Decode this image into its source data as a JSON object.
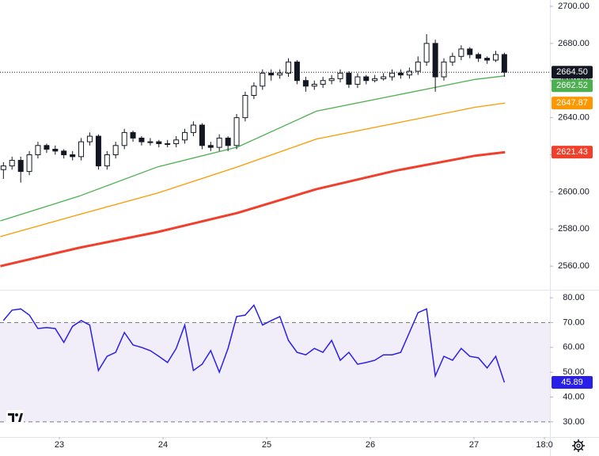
{
  "chart_data": [
    {
      "type": "candlestick",
      "x": [
        22.46,
        22.543,
        22.627,
        22.71,
        22.793,
        22.877,
        22.96,
        23.043,
        23.127,
        23.21,
        23.293,
        23.377,
        23.46,
        23.543,
        23.627,
        23.71,
        23.793,
        23.877,
        23.96,
        24.043,
        24.127,
        24.21,
        24.293,
        24.377,
        24.46,
        24.543,
        24.627,
        24.71,
        24.793,
        24.877,
        24.96,
        25.043,
        25.127,
        25.21,
        25.293,
        25.377,
        25.46,
        25.543,
        25.627,
        25.71,
        25.793,
        25.877,
        25.96,
        26.043,
        26.127,
        26.21,
        26.293,
        26.377,
        26.46,
        26.543,
        26.627,
        26.71,
        26.793,
        26.877,
        26.96,
        27.043,
        27.127,
        27.21,
        27.293
      ],
      "open": [
        2612,
        2614,
        2617,
        2611,
        2620,
        2625,
        2623,
        2622,
        2620,
        2619,
        2627,
        2630,
        2614,
        2620,
        2625,
        2632,
        2629,
        2627,
        2627,
        2626,
        2626,
        2628,
        2632,
        2636,
        2625,
        2624,
        2629,
        2625,
        2640,
        2652,
        2657,
        2664,
        2663,
        2664,
        2670,
        2660,
        2657,
        2658,
        2660,
        2661,
        2664,
        2658,
        2662,
        2660,
        2661,
        2662,
        2664,
        2663,
        2665,
        2670,
        2680,
        2662,
        2670,
        2673,
        2677,
        2674,
        2672,
        2671,
        2674
      ],
      "high": [
        2616,
        2619,
        2619,
        2622,
        2627,
        2626,
        2625,
        2623,
        2622,
        2629,
        2632,
        2631,
        2622,
        2627,
        2634,
        2633,
        2630,
        2629,
        2628,
        2628,
        2630,
        2634,
        2638,
        2637,
        2627,
        2631,
        2630,
        2642,
        2654,
        2659,
        2666,
        2666,
        2666,
        2672,
        2671,
        2662,
        2660,
        2662,
        2663,
        2666,
        2665,
        2664,
        2663,
        2663,
        2664,
        2666,
        2666,
        2667,
        2673,
        2685,
        2682,
        2672,
        2675,
        2679,
        2678,
        2675,
        2673,
        2676,
        2675
      ],
      "low": [
        2607,
        2612,
        2605,
        2609,
        2618,
        2621,
        2620,
        2618,
        2617,
        2617,
        2625,
        2612,
        2612,
        2618,
        2623,
        2627,
        2625,
        2625,
        2624,
        2624,
        2624,
        2626,
        2630,
        2623,
        2622,
        2622,
        2622,
        2623,
        2638,
        2650,
        2655,
        2660,
        2661,
        2662,
        2658,
        2654,
        2655,
        2656,
        2658,
        2659,
        2656,
        2656,
        2658,
        2659,
        2660,
        2660,
        2661,
        2661,
        2663,
        2668,
        2654,
        2660,
        2668,
        2671,
        2672,
        2670,
        2669,
        2670,
        2662
      ],
      "close": [
        2614,
        2617,
        2611,
        2620,
        2625,
        2623,
        2622,
        2620,
        2619,
        2627,
        2630,
        2614,
        2620,
        2625,
        2632,
        2629,
        2627,
        2627,
        2626,
        2626,
        2628,
        2632,
        2636,
        2625,
        2624,
        2629,
        2625,
        2640,
        2652,
        2657,
        2664,
        2663,
        2664,
        2670,
        2660,
        2657,
        2658,
        2660,
        2661,
        2664,
        2658,
        2662,
        2660,
        2661,
        2662,
        2664,
        2663,
        2665,
        2670,
        2680,
        2662,
        2670,
        2673,
        2677,
        2674,
        2672,
        2671,
        2674,
        2664.5
      ],
      "last_price": {
        "value": 2664.5,
        "label": "2664.50"
      },
      "up_color": "#ffffff",
      "down_color": "#131722",
      "series": [
        {
          "x": [
            22.43,
            23.19,
            23.95,
            24.72,
            25.48,
            26.24,
            27.01,
            27.3
          ],
          "values": [
            2584.4,
            2597.7,
            2613.5,
            2624.2,
            2643.5,
            2652,
            2660.6,
            2662.52
          ],
          "last_label": "2662.52",
          "color": "#4caf50"
        },
        {
          "x": [
            22.43,
            23.19,
            23.95,
            24.72,
            25.48,
            26.24,
            27.01,
            27.3
          ],
          "values": [
            2575.9,
            2587.8,
            2599.4,
            2613.5,
            2628.5,
            2637,
            2645.6,
            2647.87
          ],
          "last_label": "2647.87",
          "color": "#ff9800"
        },
        {
          "x": [
            22.43,
            23.19,
            23.95,
            24.72,
            25.48,
            26.24,
            27.01,
            27.3
          ],
          "values": [
            2560,
            2569.9,
            2578.4,
            2588.7,
            2601.5,
            2611.4,
            2619.5,
            2621.43
          ],
          "last_label": "2621.43",
          "color": "#f0402c"
        }
      ],
      "xlim": [
        22.427,
        27.733
      ],
      "xticks": [
        23,
        24,
        25,
        26,
        27,
        {
          "value": 27.68,
          "label": "18:0"
        }
      ],
      "ylim": [
        2547.7,
        2703.4
      ],
      "yticks": [
        {
          "value": 2560,
          "label": "2560.00"
        },
        {
          "value": 2580,
          "label": "2580.00"
        },
        {
          "value": 2600,
          "label": "2600.00"
        },
        {
          "value": 2620,
          "label": "2620.00"
        },
        {
          "value": 2640,
          "label": "2640.00"
        },
        {
          "value": 2660,
          "label": "2660.00"
        },
        {
          "value": 2680,
          "label": "2680.00"
        },
        {
          "value": 2700,
          "label": "2700.00"
        }
      ]
    },
    {
      "type": "line",
      "x": [
        22.46,
        22.543,
        22.627,
        22.71,
        22.793,
        22.877,
        22.96,
        23.043,
        23.127,
        23.21,
        23.293,
        23.377,
        23.46,
        23.543,
        23.627,
        23.71,
        23.793,
        23.877,
        23.96,
        24.043,
        24.127,
        24.21,
        24.293,
        24.377,
        24.46,
        24.543,
        24.627,
        24.71,
        24.793,
        24.877,
        24.96,
        25.043,
        25.127,
        25.21,
        25.293,
        25.377,
        25.46,
        25.543,
        25.627,
        25.71,
        25.793,
        25.877,
        25.96,
        26.043,
        26.127,
        26.21,
        26.293,
        26.377,
        26.46,
        26.543,
        26.627,
        26.71,
        26.793,
        26.877,
        26.96,
        27.043,
        27.127,
        27.21,
        27.293
      ],
      "series": [
        {
          "values": [
            70.8,
            75,
            75.5,
            73,
            67.6,
            68,
            67.6,
            62,
            68.5,
            70.8,
            69,
            50.7,
            56.4,
            58,
            66,
            61,
            60,
            58.7,
            56.4,
            53.9,
            59.6,
            69,
            50.7,
            53.2,
            58.7,
            50,
            59.6,
            72.4,
            73,
            77,
            69,
            70.8,
            72.4,
            62.8,
            58,
            57,
            59.6,
            58,
            62.8,
            54.8,
            58,
            53.2,
            53.9,
            54.8,
            57,
            57,
            58,
            66,
            74,
            75.5,
            48.5,
            56.4,
            54.8,
            59.6,
            56.4,
            55.8,
            51.7,
            56.4,
            45.89
          ],
          "last_label": "45.89",
          "color": "#2a1fe8"
        }
      ],
      "band": [
        30,
        70
      ],
      "ylim": [
        23.9,
        82.9
      ],
      "yticks": [
        {
          "value": 30,
          "label": "30.00"
        },
        {
          "value": 40,
          "label": "40.00"
        },
        {
          "value": 50,
          "label": "50.00"
        },
        {
          "value": 60,
          "label": "60.00"
        },
        {
          "value": 70,
          "label": "70.00"
        },
        {
          "value": 80,
          "label": "80.00"
        }
      ]
    }
  ]
}
